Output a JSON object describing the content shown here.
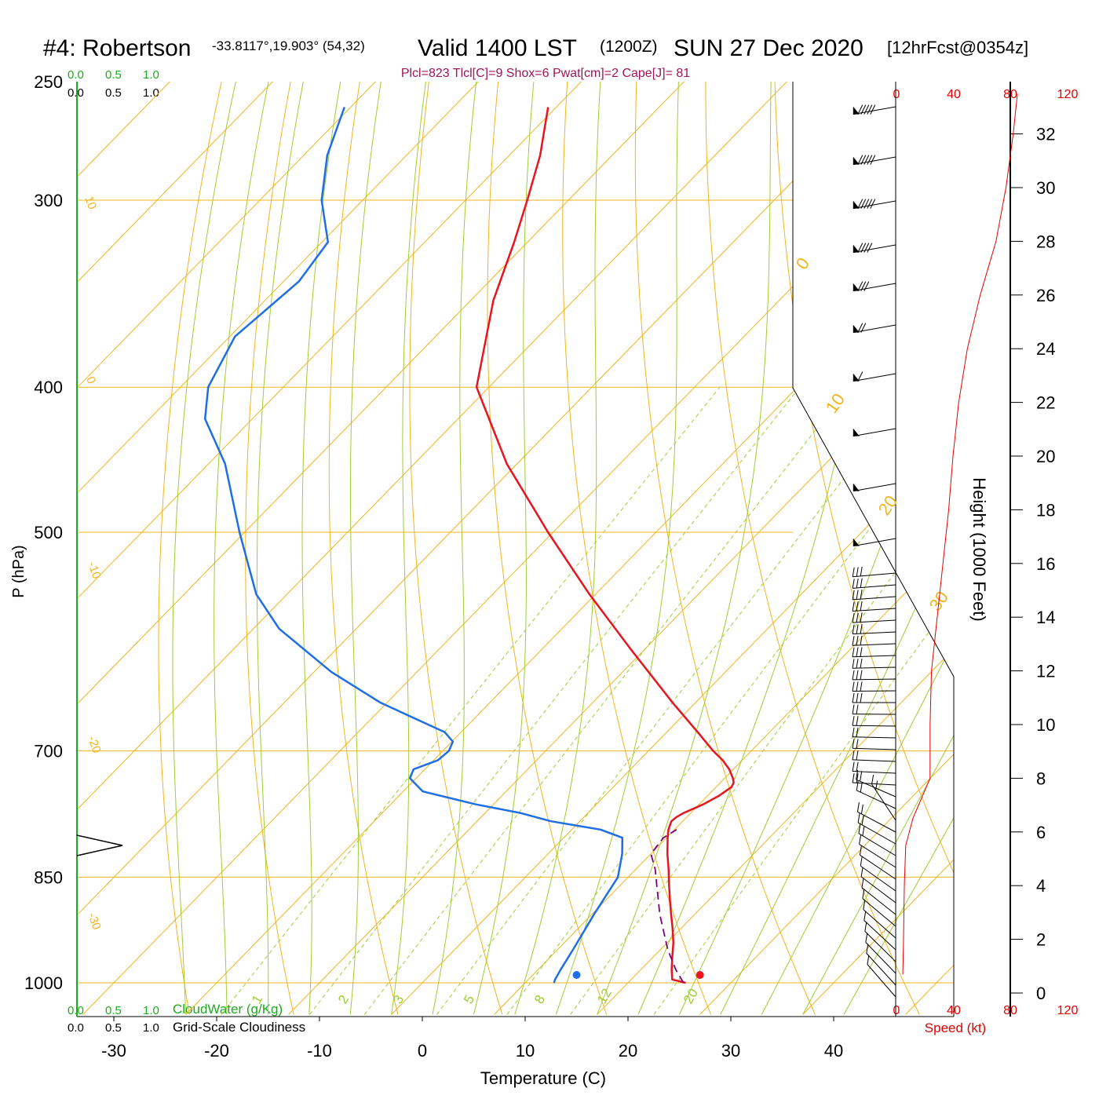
{
  "header": {
    "station": "#4: Robertson",
    "coords": "-33.8117°,19.903° (54,32)",
    "valid": "Valid 1400 LST",
    "zulu": "(1200Z)",
    "date": "SUN 27 Dec 2020",
    "forecast": "[12hrFcst@0354z]"
  },
  "indices": "Plcl=823 Tlcl[C]=9 Shox=6 Pwat[cm]=2 Cape[J]= 81",
  "left_scales": {
    "top_cloudwater_ticks": [
      "0.0",
      "0.5",
      "1.0"
    ],
    "top_cloudiness_ticks": [
      "0.0",
      "0.5",
      "1.0"
    ],
    "bottom_cloudwater_ticks": [
      "0.0",
      "0.5",
      "1.0"
    ],
    "bottom_cloudiness_ticks": [
      "0.0",
      "0.5",
      "1.0"
    ],
    "cloudwater_label": "CloudWater (g/Kg)",
    "cloudiness_label": "Grid-Scale Cloudiness"
  },
  "speed_scale": {
    "top_ticks": [
      "0",
      "40",
      "80",
      "120"
    ],
    "bottom_ticks": [
      "0",
      "40",
      "80",
      "120"
    ],
    "label": "Speed (kt)"
  },
  "colors": {
    "temperature": "#e8141e",
    "dewpoint": "#1e6ee6",
    "parcel": "#800080",
    "isobar_isotherm": "#f0b41e",
    "dry_adiabat": "#a0cd32",
    "mixing_ratio": "#a0cd32",
    "cloudwater": "#1eaa1e",
    "indices": "#a0145a",
    "speed": "#e60000"
  },
  "chart_data": {
    "type": "line",
    "subtype": "skew-T log-P sounding",
    "xlabel": "Temperature (C)",
    "ylabel": "P (hPa)",
    "y2label": "Height (1000 Feet)",
    "x_ticks": [
      -30,
      -20,
      -10,
      0,
      10,
      20,
      30,
      40
    ],
    "y_ticks": [
      250,
      300,
      400,
      500,
      700,
      850,
      1000
    ],
    "height_ticks": [
      0,
      2,
      4,
      6,
      8,
      10,
      12,
      14,
      16,
      18,
      20,
      22,
      24,
      26,
      28,
      30,
      32
    ],
    "isotherm_labels": [
      {
        "label": "10",
        "value": 10
      },
      {
        "label": "0",
        "value": 0
      },
      {
        "label": "-10",
        "value": -10
      },
      {
        "label": "-20",
        "value": -20
      },
      {
        "label": "-30",
        "value": -30
      },
      {
        "label": "0",
        "value": 0
      },
      {
        "label": "10",
        "value": 10
      },
      {
        "label": "20",
        "value": 20
      },
      {
        "label": "30",
        "value": 30
      }
    ],
    "mixing_ratio_labels": [
      "1",
      "2",
      "3",
      "5",
      "8",
      "12",
      "20"
    ],
    "series": [
      {
        "name": "Temperature",
        "pressure": [
          1000,
          995,
          980,
          960,
          940,
          920,
          900,
          880,
          860,
          840,
          820,
          800,
          790,
          780,
          775,
          770,
          760,
          750,
          740,
          735,
          730,
          720,
          710,
          700,
          680,
          650,
          600,
          550,
          500,
          450,
          400,
          350,
          320,
          300,
          280,
          260
        ],
        "values": [
          25.6,
          24.0,
          23.0,
          21.8,
          20.6,
          19.2,
          17.7,
          16.2,
          14.7,
          13.2,
          11.6,
          10.1,
          9.4,
          8.9,
          9.0,
          9.3,
          10.4,
          11.1,
          11.5,
          11.3,
          10.8,
          9.6,
          8.1,
          6.3,
          3.0,
          -2.2,
          -11.1,
          -20.6,
          -30.5,
          -41.0,
          -51.2,
          -57.8,
          -61.3,
          -64.0,
          -67.0,
          -70.8
        ]
      },
      {
        "name": "Dewpoint",
        "pressure": [
          1000,
          995,
          980,
          950,
          900,
          850,
          820,
          800,
          790,
          780,
          770,
          760,
          745,
          730,
          720,
          710,
          700,
          690,
          680,
          650,
          620,
          580,
          550,
          500,
          450,
          420,
          400,
          370,
          340,
          320,
          300,
          280,
          260
        ],
        "values": [
          12.8,
          12.6,
          12.2,
          11.5,
          10.2,
          9.0,
          7.2,
          5.7,
          2.8,
          -2.8,
          -6.6,
          -11.7,
          -18.1,
          -20.6,
          -21.1,
          -19.6,
          -19.4,
          -19.9,
          -21.6,
          -30.6,
          -38.3,
          -47.5,
          -53.0,
          -60.5,
          -68.4,
          -74.6,
          -77.3,
          -79.5,
          -78.5,
          -79.4,
          -84.0,
          -87.7,
          -90.6
        ]
      },
      {
        "name": "Parcel",
        "pressure": [
          1000,
          980,
          950,
          900,
          860,
          840,
          820,
          800,
          790
        ],
        "values": [
          25.4,
          23.4,
          20.7,
          16.6,
          13.5,
          11.9,
          10.0,
          9.7,
          10.2
        ]
      }
    ],
    "surface_temperature": 27.0,
    "surface_dewpoint": 15.0,
    "xlim": [
      -33,
      47
    ],
    "ylim": [
      1050,
      250
    ],
    "wind_speed_profile": {
      "height_kft": [
        0.7,
        2,
        4,
        5.5,
        6.5,
        8,
        10,
        12,
        14,
        16,
        18,
        20,
        22,
        24,
        26,
        28,
        30,
        32,
        33.5
      ],
      "speed_kt": [
        5,
        5.5,
        6,
        7,
        12,
        24,
        24,
        25,
        29,
        33,
        37,
        40,
        44,
        50,
        59,
        70,
        77,
        82,
        85
      ],
      "xlim": [
        0,
        120
      ]
    }
  }
}
